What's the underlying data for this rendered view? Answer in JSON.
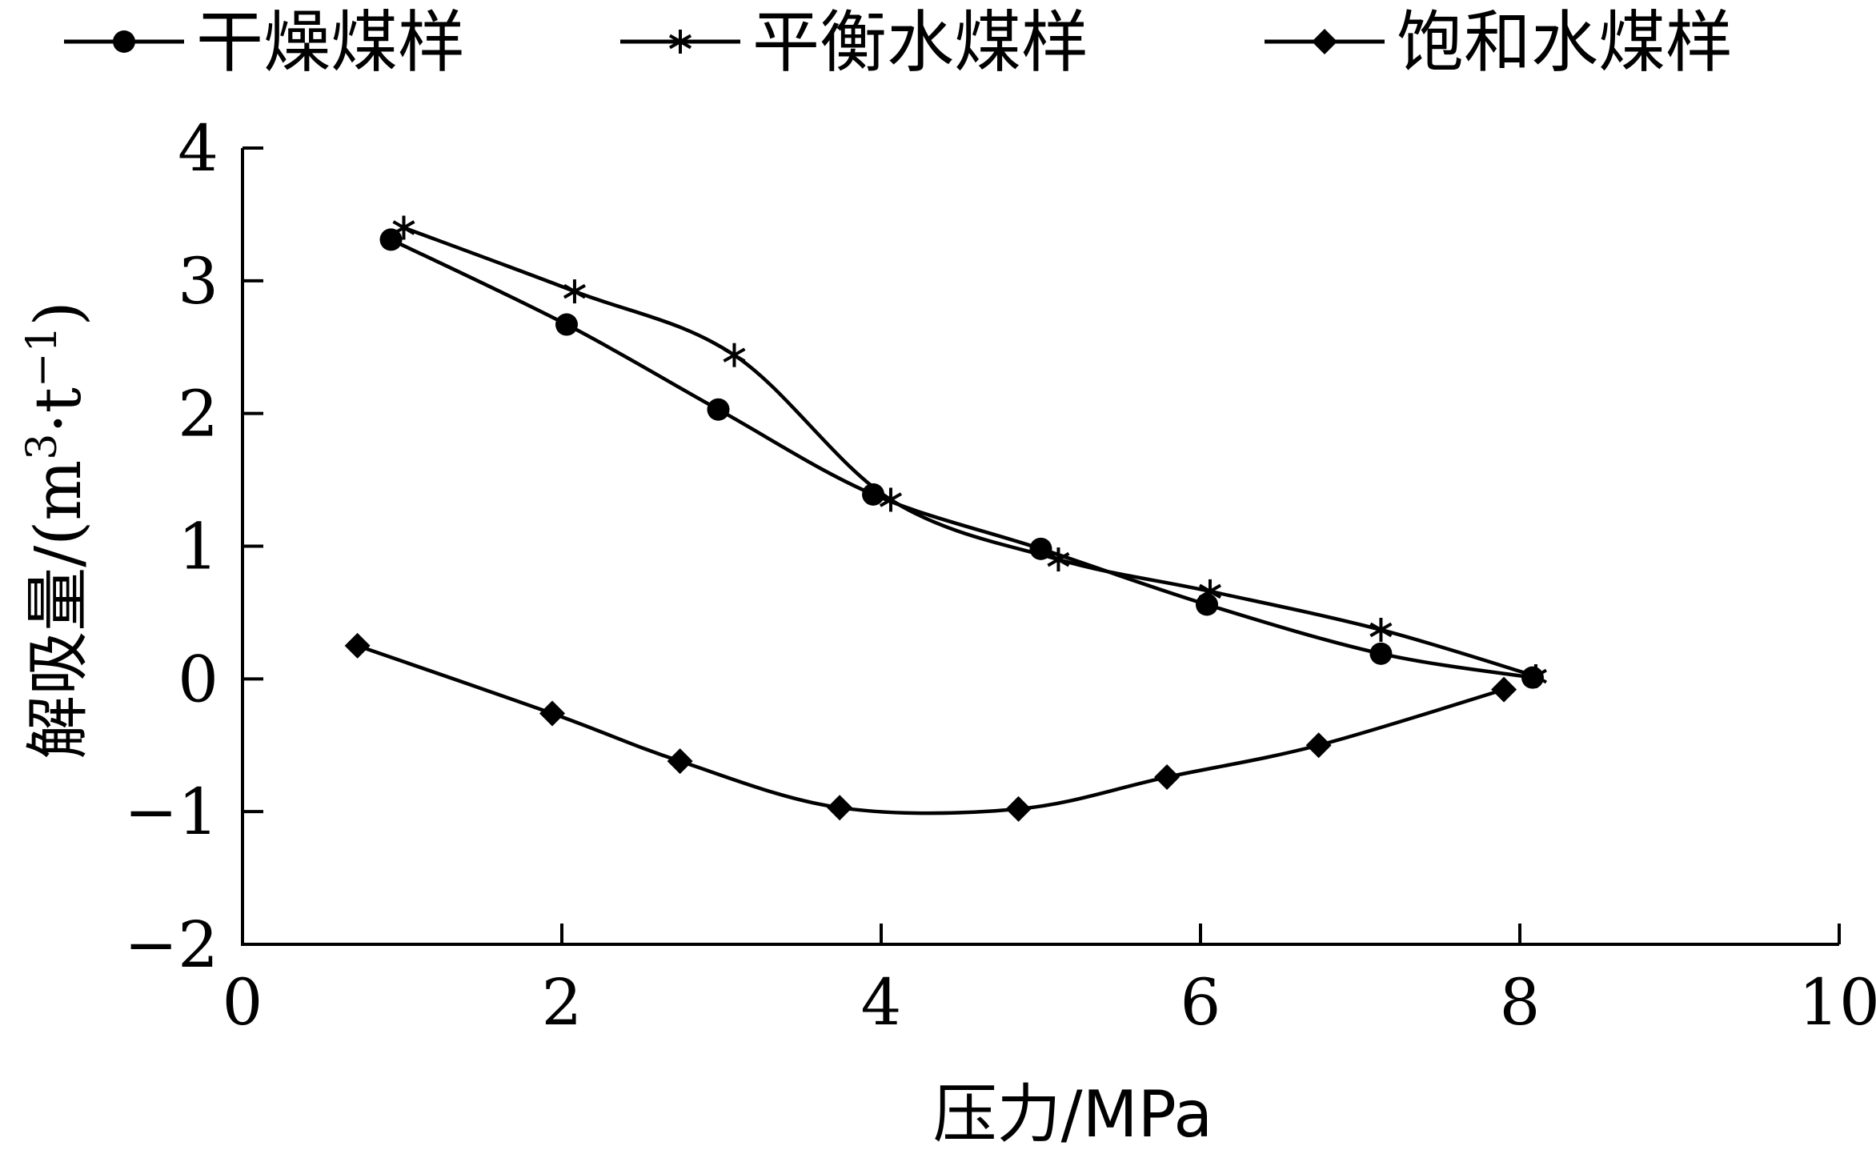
{
  "chart_data": {
    "type": "line",
    "xlabel": "压力/MPa",
    "ylabel_main": "解吸量",
    "ylabel_unit_prefix": "/(m",
    "ylabel_unit_sup1": "3",
    "ylabel_unit_mid": "·t",
    "ylabel_unit_sup2": "−1",
    "ylabel_unit_suffix": ")",
    "xlim": [
      0,
      10
    ],
    "ylim": [
      -2,
      4
    ],
    "xticks": [
      0,
      2,
      4,
      6,
      8,
      10
    ],
    "yticks": [
      -2,
      -1,
      0,
      1,
      2,
      3,
      4
    ],
    "xtick_labels": [
      "0",
      "2",
      "4",
      "6",
      "8",
      "10"
    ],
    "ytick_labels": [
      "−2",
      "−1",
      "0",
      "1",
      "2",
      "3",
      "4"
    ],
    "grid": false,
    "legend_position": "top",
    "series": [
      {
        "name": "干燥煤样",
        "marker": "circle",
        "color": "#000000",
        "x": [
          0.93,
          2.03,
          2.98,
          3.95,
          5.0,
          6.04,
          7.13,
          8.08
        ],
        "y": [
          3.31,
          2.67,
          2.03,
          1.39,
          0.98,
          0.56,
          0.19,
          0.01
        ]
      },
      {
        "name": "平衡水煤样",
        "marker": "asterisk",
        "color": "#000000",
        "x": [
          1.01,
          2.08,
          3.08,
          4.06,
          5.11,
          6.06,
          7.13,
          8.1
        ],
        "y": [
          3.4,
          2.92,
          2.44,
          1.35,
          0.9,
          0.66,
          0.37,
          0.02
        ]
      },
      {
        "name": "饱和水煤样",
        "marker": "diamond",
        "color": "#000000",
        "x": [
          0.72,
          1.94,
          2.74,
          3.74,
          4.86,
          5.79,
          6.74,
          7.9
        ],
        "y": [
          0.25,
          -0.26,
          -0.62,
          -0.97,
          -0.98,
          -0.74,
          -0.5,
          -0.08
        ]
      }
    ]
  }
}
